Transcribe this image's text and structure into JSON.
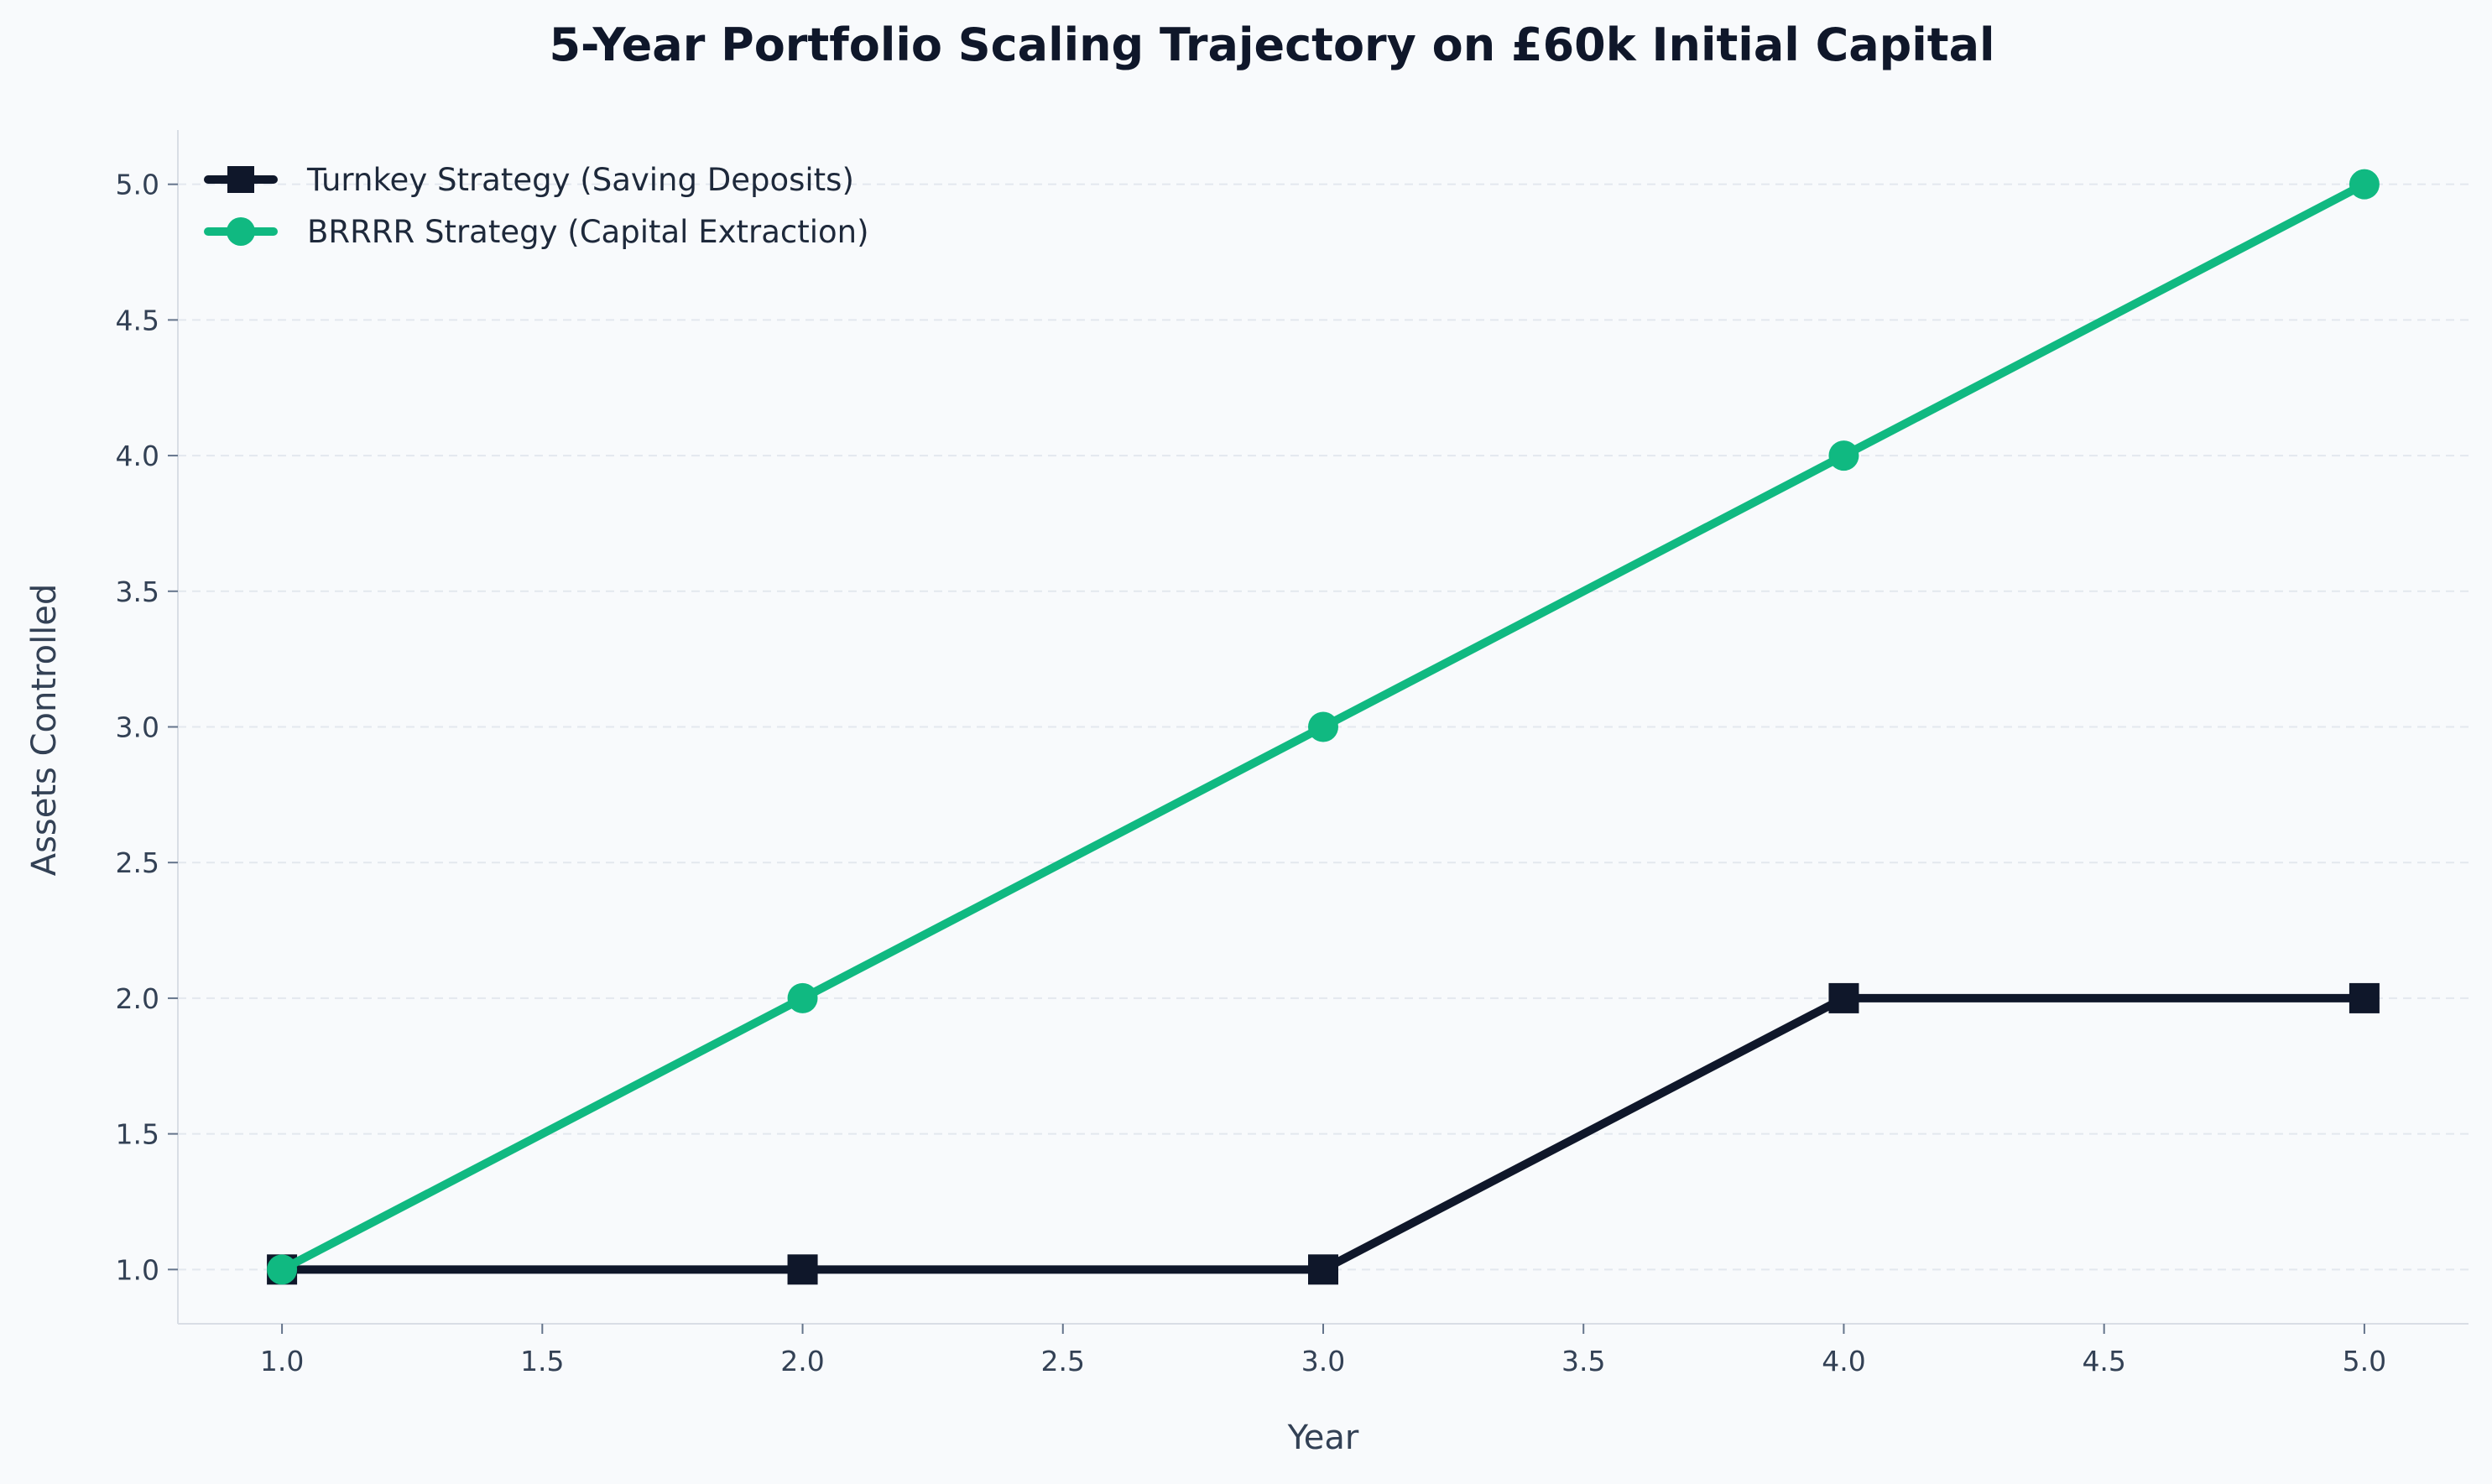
{
  "chart_data": {
    "type": "line",
    "title": "5-Year Portfolio Scaling Trajectory on £60k Initial Capital",
    "xlabel": "Year",
    "ylabel": "Assets Controlled",
    "x": [
      1.0,
      2.0,
      3.0,
      4.0,
      5.0
    ],
    "xlim": [
      0.8,
      5.2
    ],
    "ylim": [
      0.8,
      5.2
    ],
    "x_ticks": [
      "1.0",
      "1.5",
      "2.0",
      "2.5",
      "3.0",
      "3.5",
      "4.0",
      "4.5",
      "5.0"
    ],
    "y_ticks": [
      "1.0",
      "1.5",
      "2.0",
      "2.5",
      "3.0",
      "3.5",
      "4.0",
      "4.5",
      "5.0"
    ],
    "grid": "y-dashed",
    "legend_position": "top-left",
    "series": [
      {
        "name": "Turnkey Strategy (Saving Deposits)",
        "values": [
          1,
          1,
          1,
          2,
          2
        ],
        "color": "#0f172a",
        "marker": "square"
      },
      {
        "name": "BRRRR Strategy (Capital Extraction)",
        "values": [
          1,
          2,
          3,
          4,
          5
        ],
        "color": "#10b981",
        "marker": "circle"
      }
    ]
  }
}
